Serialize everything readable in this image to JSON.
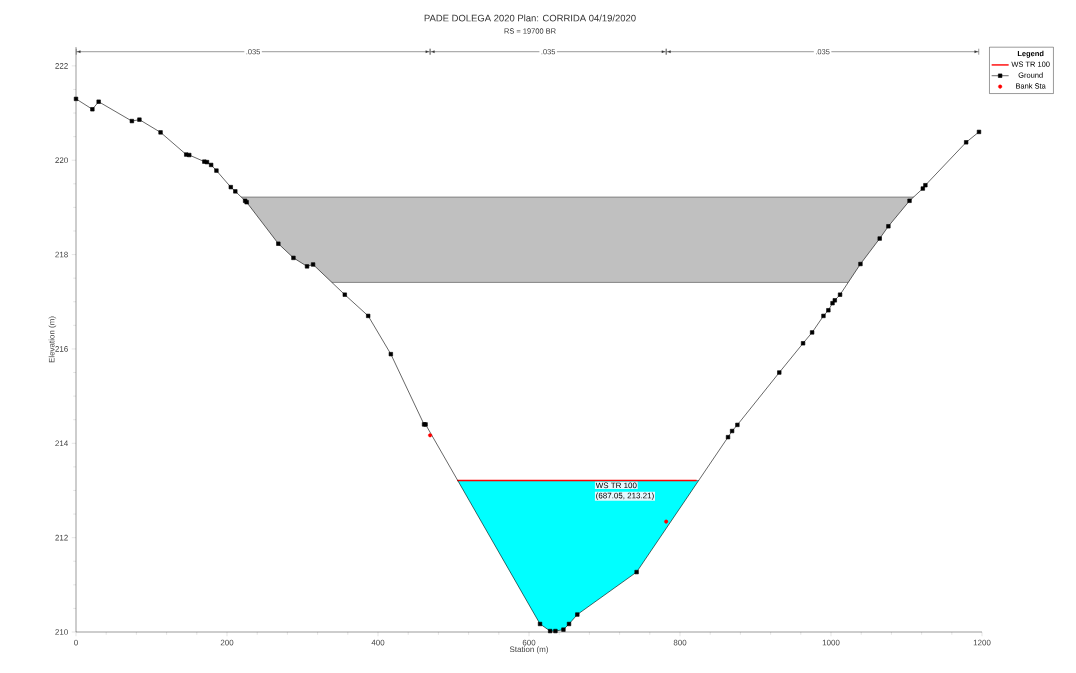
{
  "chart_data": {
    "type": "line",
    "title": "PADE DOLEGA 2020      Plan: CORRIDA      04/19/2020",
    "subtitle": "RS = 19700    BR",
    "xlabel": "Station (m)",
    "ylabel": "Elevation (m)",
    "legend_title": "Legend",
    "legend": "top right",
    "xlim": [
      0,
      1200
    ],
    "xticks": [
      0,
      200,
      400,
      600,
      800,
      1000,
      1200
    ],
    "ylim": [
      210,
      222.4
    ],
    "yticks": [
      210,
      212,
      214,
      216,
      218,
      220,
      222
    ],
    "series": [
      {
        "type": "line",
        "name": "WS TR 100",
        "color": "#ff0000",
        "marker": "none",
        "x": [
          505,
          822
        ],
        "values": [
          213.21,
          213.21
        ]
      },
      {
        "type": "line",
        "name": "Ground",
        "color": "#000000",
        "marker": "square",
        "x": [
          0,
          21.7,
          30,
          74,
          84,
          112,
          146,
          150,
          170,
          173.5,
          179,
          186,
          205,
          211,
          224,
          226,
          268,
          288,
          306,
          314,
          356,
          387,
          417,
          461,
          463,
          614.6,
          628,
          635,
          645.6,
          653,
          664,
          742.5,
          863.6,
          869,
          876,
          931.5,
          963,
          975,
          990,
          996.5,
          1002,
          1005,
          1012,
          1039,
          1064.5,
          1076,
          1104,
          1121.6,
          1125,
          1179,
          1196
        ],
        "values": [
          221.3,
          221.08,
          221.24,
          220.83,
          220.86,
          220.59,
          220.12,
          220.11,
          219.97,
          219.96,
          219.9,
          219.78,
          219.43,
          219.34,
          219.14,
          219.11,
          218.23,
          217.93,
          217.75,
          217.79,
          217.15,
          216.7,
          215.89,
          214.4,
          214.4,
          210.17,
          210.02,
          210.02,
          210.05,
          210.17,
          210.37,
          211.27,
          214.13,
          214.26,
          214.39,
          215.5,
          216.12,
          216.35,
          216.7,
          216.82,
          216.97,
          217.03,
          217.15,
          217.8,
          218.34,
          218.6,
          219.14,
          219.4,
          219.47,
          220.38,
          220.6
        ]
      },
      {
        "type": "scatter",
        "name": "Bank Sta",
        "color": "#ff0000",
        "marker": "circle",
        "x": [
          469,
          781.7
        ],
        "values": [
          214.17,
          212.34
        ]
      }
    ],
    "bands": [
      {
        "axis": "y",
        "from": 210,
        "to": 213.21,
        "color": "#00ffff"
      },
      {
        "axis": "y",
        "from": 217.41,
        "to": 219.22,
        "color": "#c0c0c0"
      }
    ],
    "annotations": [
      {
        "text": ".035",
        "x": 234.5,
        "y": 222.3
      },
      {
        "text": ".035",
        "x": 625.35,
        "y": 222.3
      },
      {
        "text": ".035",
        "x": 988.85,
        "y": 222.3
      },
      {
        "text": "WS TR 100",
        "x": 687.05,
        "y": 213.21
      },
      {
        "text": "(687.05, 213.21)",
        "x": 687.05,
        "y": 213.21
      }
    ]
  }
}
